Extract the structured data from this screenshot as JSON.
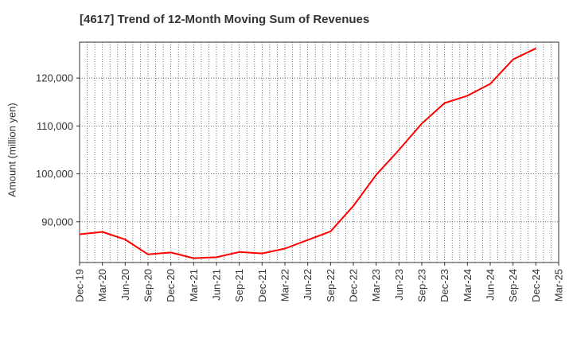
{
  "chart_data": {
    "type": "line",
    "title": "[4617]  Trend of 12-Month Moving Sum of Revenues",
    "xlabel": "",
    "ylabel": "Amount (million yen)",
    "x_tick_labels": [
      "Dec-19",
      "Mar-20",
      "Jun-20",
      "Sep-20",
      "Dec-20",
      "Mar-21",
      "Jun-21",
      "Sep-21",
      "Dec-21",
      "Mar-22",
      "Jun-22",
      "Sep-22",
      "Dec-22",
      "Mar-23",
      "Jun-23",
      "Sep-23",
      "Dec-23",
      "Mar-24",
      "Jun-24",
      "Sep-24",
      "Dec-24",
      "Mar-25"
    ],
    "y_tick_values": [
      90000,
      100000,
      110000,
      120000
    ],
    "y_tick_labels": [
      "90,000",
      "100,000",
      "110,000",
      "120,000"
    ],
    "ylim": [
      81500,
      127500
    ],
    "grid": true,
    "series": [
      {
        "color": "#ff0000",
        "x": [
          "Dec-19",
          "Mar-20",
          "Jun-20",
          "Sep-20",
          "Dec-20",
          "Mar-21",
          "Jun-21",
          "Sep-21",
          "Dec-21",
          "Mar-22",
          "Jun-22",
          "Sep-22",
          "Dec-22",
          "Mar-23",
          "Jun-23",
          "Sep-23",
          "Dec-23",
          "Mar-24",
          "Jun-24",
          "Sep-24",
          "Dec-24"
        ],
        "values": [
          87400,
          87900,
          86300,
          83200,
          83600,
          82400,
          82600,
          83700,
          83400,
          84400,
          86200,
          88000,
          93300,
          99800,
          105000,
          110500,
          114800,
          116300,
          118800,
          123900,
          126200
        ]
      }
    ]
  }
}
